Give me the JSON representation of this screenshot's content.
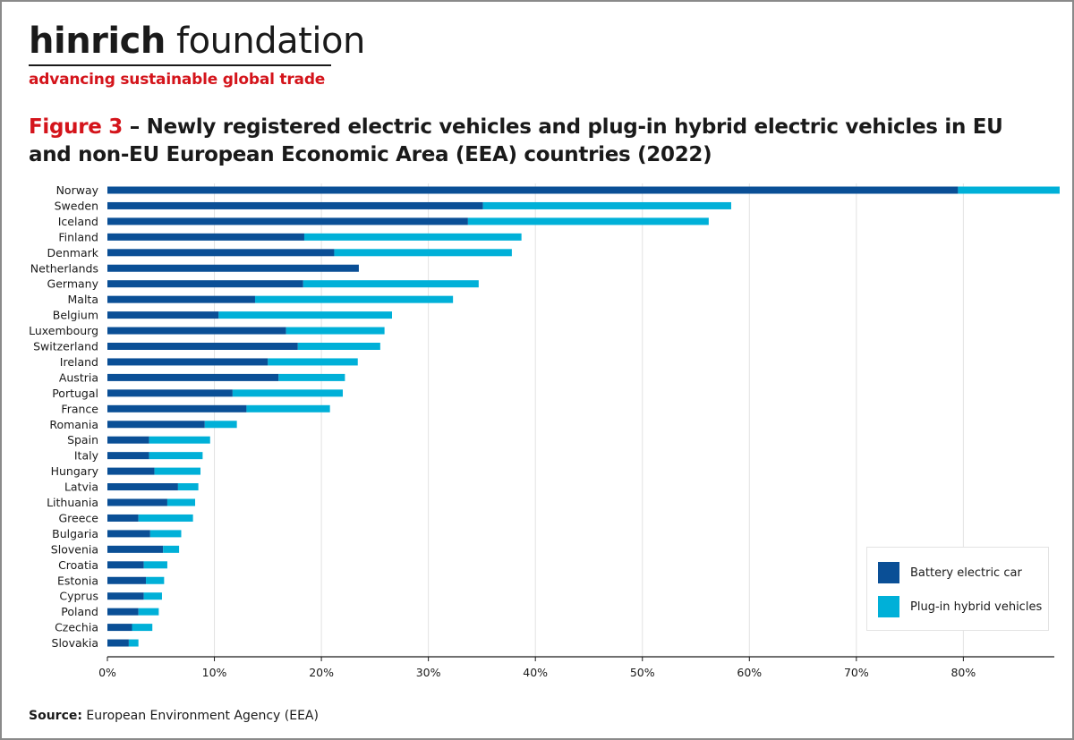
{
  "logo": {
    "name_bold": "hinrich",
    "name_light": "foundation",
    "tagline": "advancing sustainable global trade"
  },
  "title": {
    "figure_label": "Figure 3",
    "text": " – Newly registered electric vehicles and plug-in hybrid electric vehicles in EU and non-EU European Economic Area (EEA) countries (2022)"
  },
  "source": {
    "label": "Source:",
    "text": " European Environment Agency (EEA)"
  },
  "colors": {
    "battery": "#0a4f96",
    "plugin": "#00b0d8",
    "grid": "#e2e2e2",
    "axis": "#1a1a1a"
  },
  "chart_data": {
    "type": "bar",
    "orientation": "horizontal",
    "stacked": true,
    "categories": [
      "Norway",
      "Sweden",
      "Iceland",
      "Finland",
      "Denmark",
      "Netherlands",
      "Germany",
      "Malta",
      "Belgium",
      "Luxembourg",
      "Switzerland",
      "Ireland",
      "Austria",
      "Portugal",
      "France",
      "Romania",
      "Spain",
      "Italy",
      "Hungary",
      "Latvia",
      "Lithuania",
      "Greece",
      "Bulgaria",
      "Slovenia",
      "Croatia",
      "Estonia",
      "Cyprus",
      "Poland",
      "Czechia",
      "Slovakia"
    ],
    "series": [
      {
        "name": "Battery electric car",
        "color": "#0a4f96",
        "values": [
          79.5,
          35.1,
          33.7,
          18.4,
          21.2,
          23.5,
          18.3,
          13.8,
          10.4,
          16.7,
          17.8,
          15.0,
          16.0,
          11.7,
          13.0,
          9.1,
          3.9,
          3.9,
          4.4,
          6.6,
          5.6,
          2.9,
          4.0,
          5.2,
          3.4,
          3.6,
          3.4,
          2.9,
          2.3,
          2.0
        ]
      },
      {
        "name": "Plug-in hybrid vehicles",
        "color": "#00b0d8",
        "values": [
          9.5,
          23.2,
          22.5,
          20.3,
          16.6,
          0.0,
          16.4,
          18.5,
          16.2,
          9.2,
          7.7,
          8.4,
          6.2,
          10.3,
          7.8,
          3.0,
          5.7,
          5.0,
          4.3,
          1.9,
          2.6,
          5.1,
          2.9,
          1.5,
          2.2,
          1.7,
          1.7,
          1.9,
          1.9,
          0.9
        ]
      }
    ],
    "xlim": [
      0,
      88.5
    ],
    "xticks": [
      0,
      10,
      20,
      30,
      40,
      50,
      60,
      70,
      80
    ],
    "xtick_labels": [
      "0%",
      "10%",
      "20%",
      "30%",
      "40%",
      "50%",
      "60%",
      "70%",
      "80%"
    ],
    "grid": true,
    "legend_position": "bottom-right",
    "xlabel": "",
    "ylabel": ""
  }
}
